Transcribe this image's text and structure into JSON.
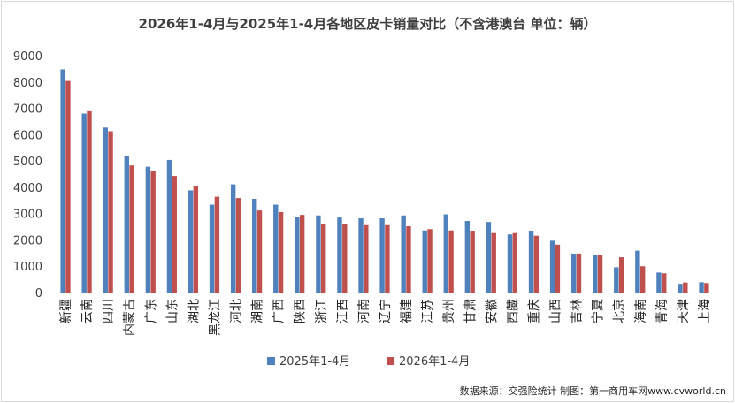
{
  "chart_data": {
    "type": "bar",
    "title": "2026年1-4月与2025年1-4月各地区皮卡销量对比（不含港澳台   单位：辆）",
    "categories": [
      "新疆",
      "云南",
      "四川",
      "内蒙古",
      "广东",
      "山东",
      "湖北",
      "黑龙江",
      "河北",
      "湖南",
      "广西",
      "陕西",
      "浙江",
      "江西",
      "河南",
      "辽宁",
      "福建",
      "江苏",
      "贵州",
      "甘肃",
      "安徽",
      "西藏",
      "重庆",
      "山西",
      "吉林",
      "宁夏",
      "北京",
      "海南",
      "青海",
      "天津",
      "上海"
    ],
    "series": [
      {
        "name": "2025年1-4月",
        "color": "#4f81bd",
        "values": [
          8480,
          6800,
          6270,
          5180,
          4780,
          5040,
          3880,
          3340,
          4110,
          3560,
          3340,
          2870,
          2930,
          2850,
          2820,
          2820,
          2930,
          2360,
          2970,
          2720,
          2680,
          2210,
          2350,
          1970,
          1480,
          1420,
          960,
          1590,
          760,
          330,
          390
        ]
      },
      {
        "name": "2026年1-4月",
        "color": "#c0504d",
        "values": [
          8040,
          6890,
          6130,
          4830,
          4620,
          4430,
          4040,
          3640,
          3590,
          3120,
          3060,
          2950,
          2620,
          2610,
          2560,
          2560,
          2520,
          2410,
          2360,
          2350,
          2260,
          2260,
          2160,
          1820,
          1480,
          1420,
          1340,
          1000,
          730,
          380,
          360
        ]
      }
    ],
    "ylim": [
      0,
      9000
    ],
    "yticks": [
      0,
      1000,
      2000,
      3000,
      4000,
      5000,
      6000,
      7000,
      8000,
      9000
    ],
    "legend": "bottom",
    "grid": false,
    "source": "数据来源：交强险统计 制图：第一商用车网www.cvworld.cn"
  }
}
